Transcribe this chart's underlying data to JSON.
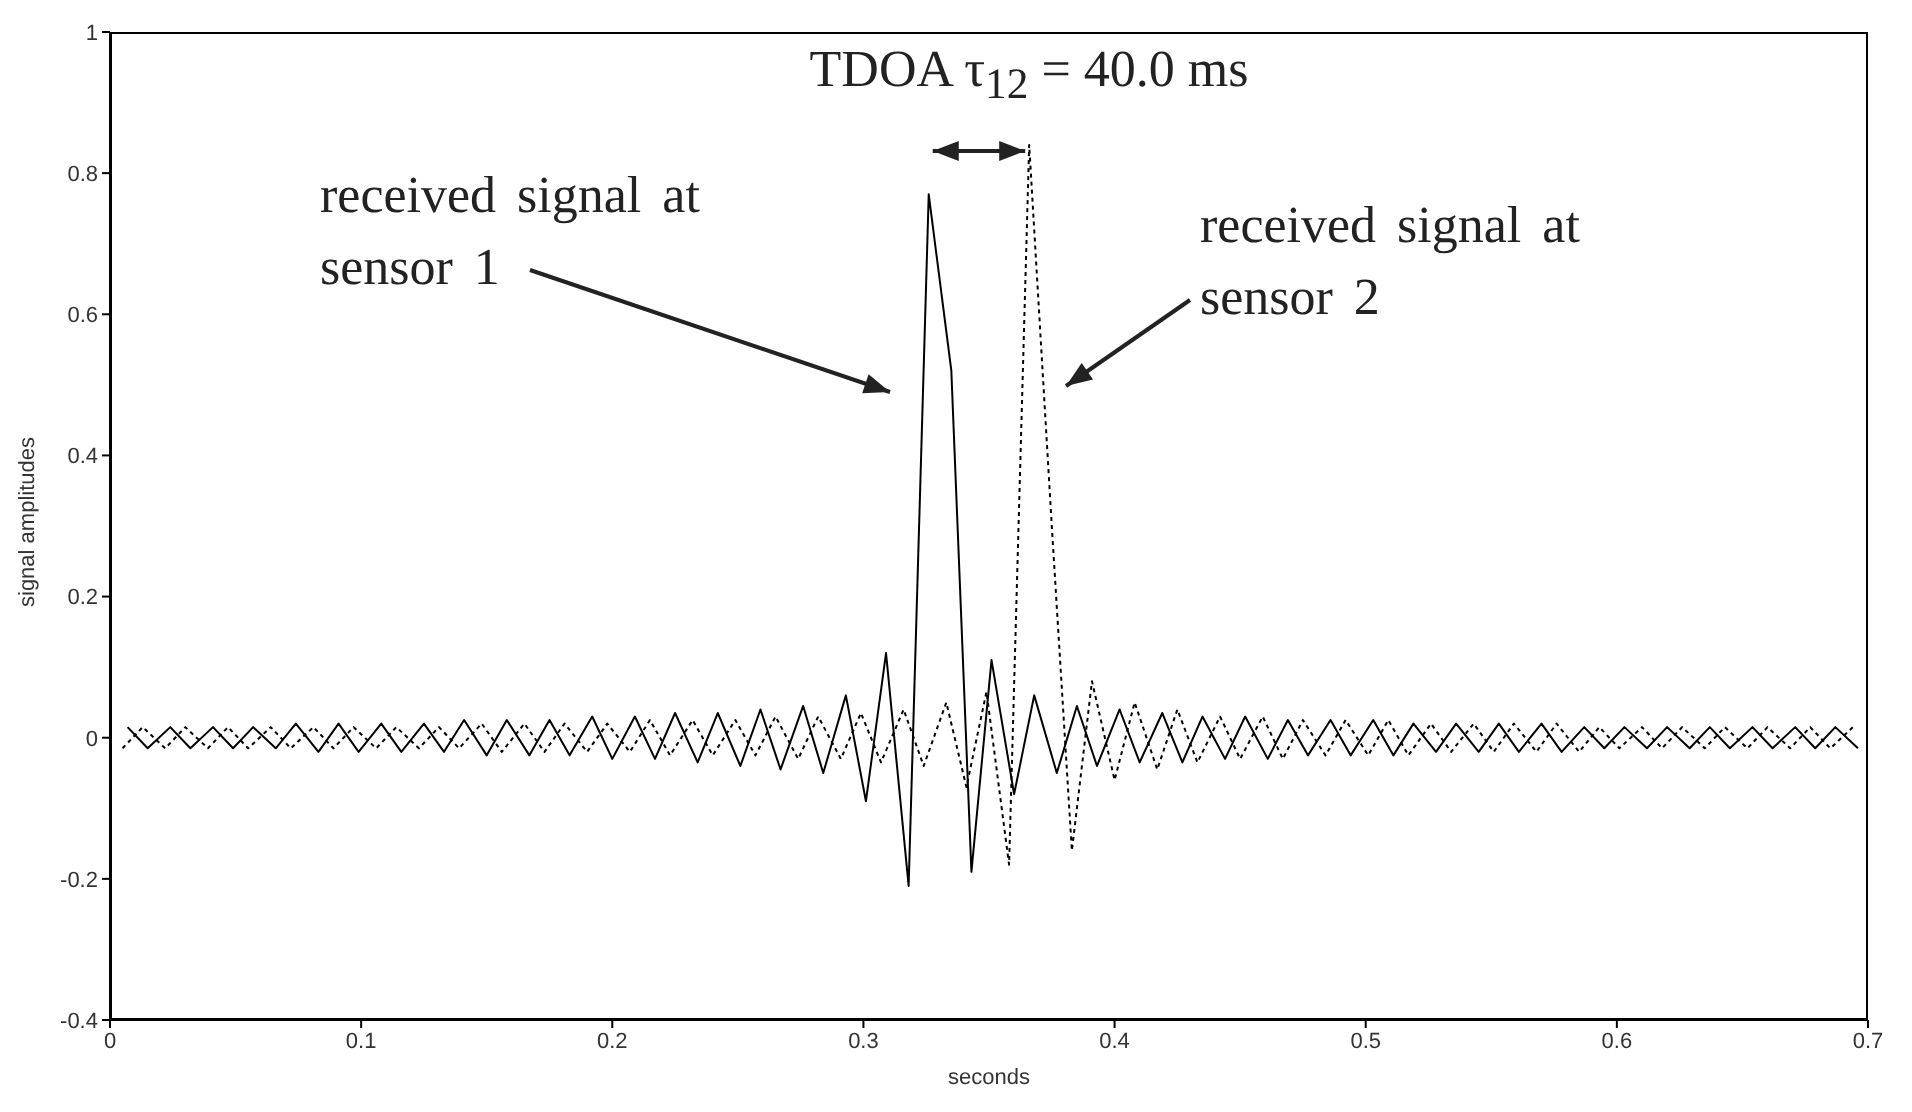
{
  "chart_data": {
    "type": "line",
    "xlabel": "seconds",
    "ylabel": "signal amplitudes",
    "xlim": [
      0,
      0.7
    ],
    "xticks": [
      0,
      0.1,
      0.2,
      0.3,
      0.4,
      0.5,
      0.6,
      0.7
    ],
    "ylim": [
      -0.4,
      1
    ],
    "yticks": [
      -0.4,
      -0.2,
      0,
      0.2,
      0.4,
      0.6,
      0.8,
      1
    ],
    "annotations": [
      "TDOA τ$_{12}$ = 40.0 ms",
      "received signal at sensor 1",
      "received signal at sensor 2"
    ],
    "series": [
      {
        "color": "#000000",
        "line_style": "solid",
        "x": [
          0.007,
          0.015,
          0.024,
          0.032,
          0.041,
          0.049,
          0.057,
          0.066,
          0.074,
          0.083,
          0.091,
          0.099,
          0.108,
          0.116,
          0.125,
          0.133,
          0.141,
          0.15,
          0.158,
          0.167,
          0.175,
          0.183,
          0.192,
          0.2,
          0.209,
          0.217,
          0.225,
          0.234,
          0.242,
          0.251,
          0.259,
          0.267,
          0.276,
          0.284,
          0.293,
          0.301,
          0.309,
          0.318,
          0.326,
          0.335,
          0.343,
          0.351,
          0.36,
          0.368,
          0.377,
          0.385,
          0.393,
          0.402,
          0.41,
          0.419,
          0.427,
          0.435,
          0.444,
          0.452,
          0.461,
          0.469,
          0.477,
          0.486,
          0.494,
          0.503,
          0.511,
          0.519,
          0.528,
          0.536,
          0.545,
          0.553,
          0.561,
          0.57,
          0.578,
          0.587,
          0.595,
          0.603,
          0.612,
          0.62,
          0.629,
          0.637,
          0.645,
          0.654,
          0.662,
          0.671,
          0.679,
          0.687,
          0.696
        ],
        "values": [
          0.015,
          -0.015,
          0.015,
          -0.015,
          0.015,
          -0.015,
          0.015,
          -0.015,
          0.02,
          -0.02,
          0.02,
          -0.02,
          0.02,
          -0.02,
          0.02,
          -0.02,
          0.025,
          -0.025,
          0.025,
          -0.025,
          0.025,
          -0.025,
          0.03,
          -0.03,
          0.03,
          -0.03,
          0.035,
          -0.035,
          0.035,
          -0.04,
          0.04,
          -0.045,
          0.045,
          -0.05,
          0.06,
          -0.09,
          0.12,
          -0.21,
          0.77,
          0.52,
          -0.19,
          0.11,
          -0.08,
          0.06,
          -0.05,
          0.045,
          -0.04,
          0.04,
          -0.035,
          0.035,
          -0.035,
          0.03,
          -0.03,
          0.03,
          -0.03,
          0.025,
          -0.025,
          0.025,
          -0.025,
          0.025,
          -0.025,
          0.02,
          -0.02,
          0.02,
          -0.02,
          0.02,
          -0.02,
          0.02,
          -0.02,
          0.015,
          -0.015,
          0.015,
          -0.015,
          0.015,
          -0.015,
          0.015,
          -0.015,
          0.015,
          -0.015,
          0.015,
          -0.015,
          0.015,
          -0.015
        ]
      },
      {
        "color": "#000000",
        "line_style": "dotted",
        "x": [
          0.005,
          0.013,
          0.022,
          0.03,
          0.039,
          0.047,
          0.055,
          0.064,
          0.072,
          0.081,
          0.089,
          0.097,
          0.106,
          0.114,
          0.123,
          0.131,
          0.139,
          0.148,
          0.156,
          0.165,
          0.173,
          0.181,
          0.19,
          0.198,
          0.207,
          0.215,
          0.223,
          0.232,
          0.24,
          0.249,
          0.257,
          0.265,
          0.274,
          0.282,
          0.291,
          0.299,
          0.307,
          0.316,
          0.324,
          0.333,
          0.341,
          0.349,
          0.358,
          0.366,
          0.375,
          0.383,
          0.391,
          0.4,
          0.408,
          0.417,
          0.425,
          0.433,
          0.442,
          0.45,
          0.459,
          0.467,
          0.475,
          0.484,
          0.492,
          0.501,
          0.509,
          0.517,
          0.526,
          0.534,
          0.543,
          0.551,
          0.559,
          0.568,
          0.576,
          0.585,
          0.593,
          0.601,
          0.61,
          0.618,
          0.626,
          0.635,
          0.643,
          0.652,
          0.66,
          0.669,
          0.677,
          0.685,
          0.694
        ],
        "values": [
          -0.015,
          0.015,
          -0.015,
          0.015,
          -0.015,
          0.015,
          -0.015,
          0.015,
          -0.015,
          0.015,
          -0.015,
          0.015,
          -0.015,
          0.015,
          -0.015,
          0.015,
          -0.015,
          0.02,
          -0.02,
          0.02,
          -0.02,
          0.02,
          -0.02,
          0.02,
          -0.02,
          0.025,
          -0.025,
          0.025,
          -0.025,
          0.025,
          -0.025,
          0.03,
          -0.03,
          0.03,
          -0.03,
          0.035,
          -0.035,
          0.04,
          -0.04,
          0.05,
          -0.07,
          0.065,
          -0.18,
          0.84,
          0.3,
          -0.16,
          0.08,
          -0.06,
          0.05,
          -0.045,
          0.04,
          -0.035,
          0.03,
          -0.03,
          0.03,
          -0.03,
          0.025,
          -0.025,
          0.025,
          -0.025,
          0.025,
          -0.025,
          0.02,
          -0.02,
          0.02,
          -0.02,
          0.02,
          -0.02,
          0.02,
          -0.02,
          0.015,
          -0.015,
          0.015,
          -0.015,
          0.015,
          -0.015,
          0.015,
          -0.015,
          0.015,
          -0.015,
          0.015,
          -0.015,
          0.015
        ]
      }
    ]
  }
}
